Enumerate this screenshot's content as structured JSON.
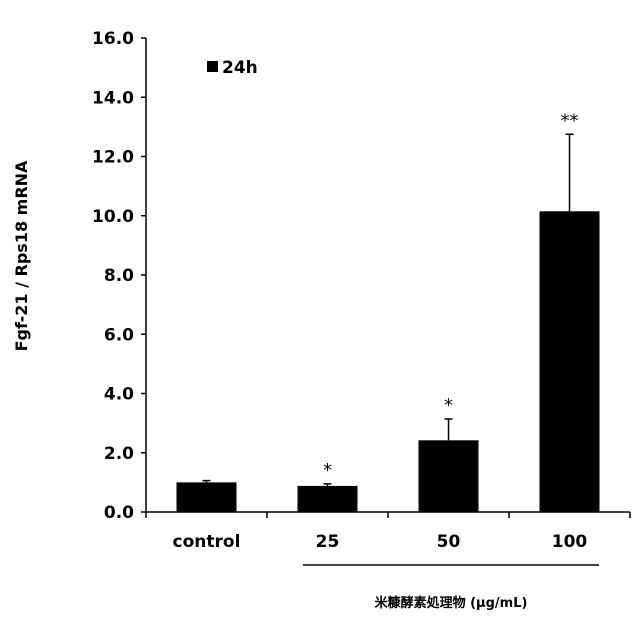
{
  "chart_data": {
    "type": "bar",
    "categories": [
      "control",
      "25",
      "50",
      "100"
    ],
    "series": [
      {
        "name": "24h",
        "values": [
          1.0,
          0.88,
          2.42,
          10.15
        ],
        "errors": [
          0.06,
          0.07,
          0.72,
          2.6
        ],
        "significance": [
          "",
          "*",
          "*",
          "**"
        ],
        "color": "#000000"
      }
    ],
    "ylabel": "Fgf-21 / Rps18 mRNA",
    "xlabel": "米糠酵素処理物 (μg/mL)",
    "ylim": [
      0,
      16
    ],
    "yticks": [
      "0.0",
      "2.0",
      "4.0",
      "6.0",
      "8.0",
      "10.0",
      "12.0",
      "14.0",
      "16.0"
    ],
    "legend_position": "top-left",
    "grid": false
  }
}
